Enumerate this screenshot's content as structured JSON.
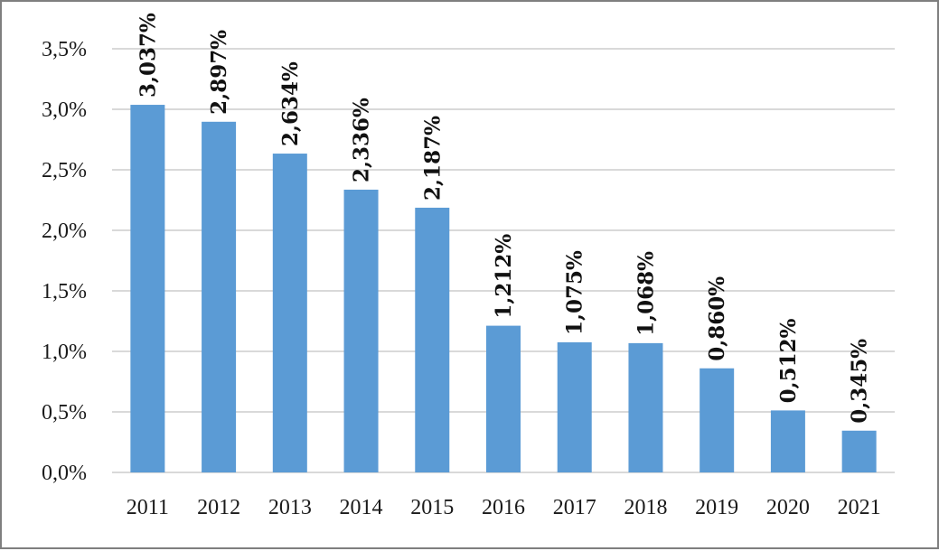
{
  "chart_data": {
    "type": "bar",
    "categories": [
      "2011",
      "2012",
      "2013",
      "2014",
      "2015",
      "2016",
      "2017",
      "2018",
      "2019",
      "2020",
      "2021"
    ],
    "values": [
      3.037,
      2.897,
      2.634,
      2.336,
      2.187,
      1.212,
      1.075,
      1.068,
      0.86,
      0.512,
      0.345
    ],
    "data_labels": [
      "3,037%",
      "2,897%",
      "2,634%",
      "2,336%",
      "2,187%",
      "1,212%",
      "1,075%",
      "1,068%",
      "0,860%",
      "0,512%",
      "0,345%"
    ],
    "y_ticks": [
      0,
      0.5,
      1.0,
      1.5,
      2.0,
      2.5,
      3.0,
      3.5
    ],
    "y_tick_labels": [
      "0,0%",
      "0,5%",
      "1,0%",
      "1,5%",
      "2,0%",
      "2,5%",
      "3,0%",
      "3,5%"
    ],
    "ylim": [
      0,
      3.5
    ],
    "grid": true,
    "legend": "none",
    "title": "",
    "xlabel": "",
    "ylabel": "",
    "colors": {
      "bar": "#5b9bd5",
      "grid": "#d9d9d9",
      "border": "#7f7f7f"
    }
  }
}
